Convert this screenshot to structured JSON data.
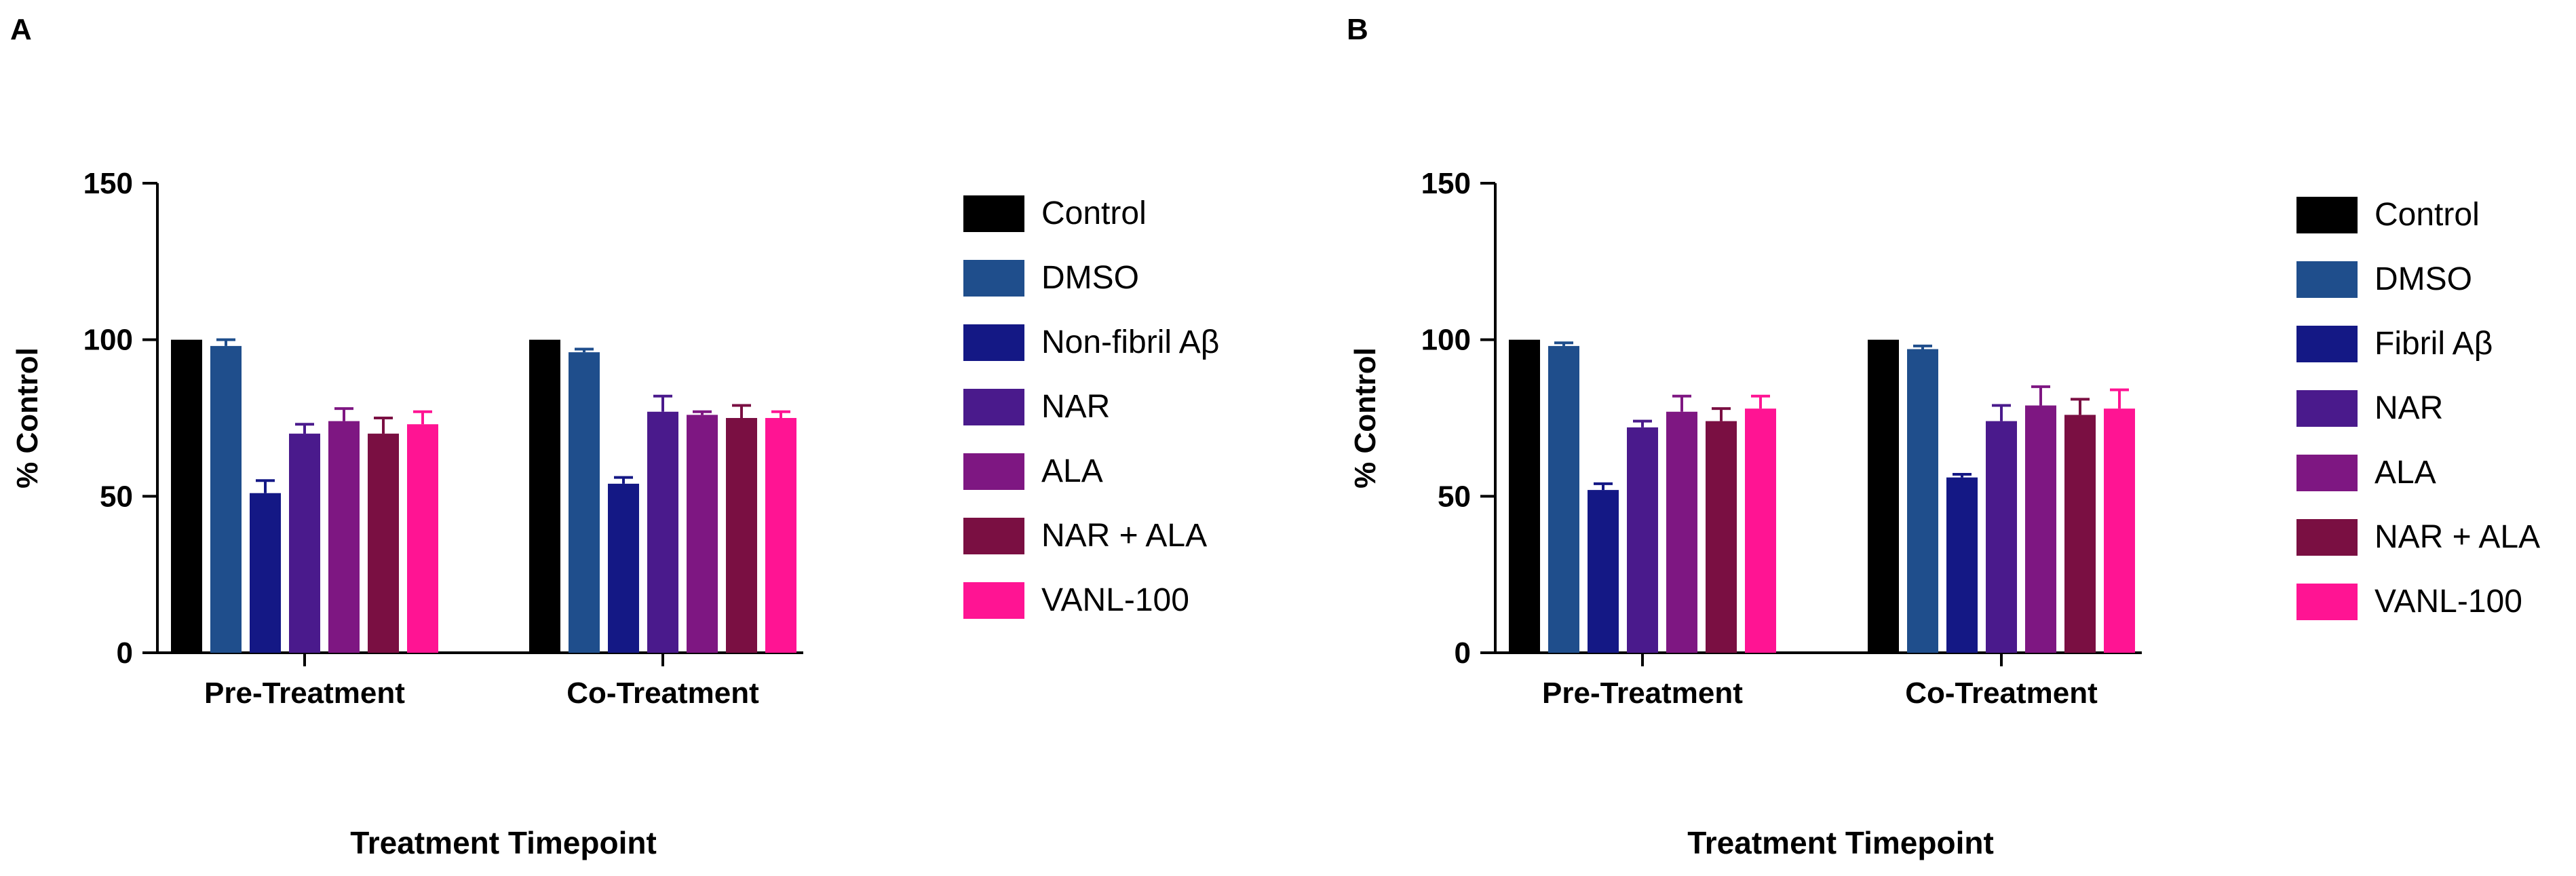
{
  "chart_data": [
    {
      "panel": "A",
      "type": "bar",
      "title": "",
      "ylabel": "% Control",
      "xlabel": "Treatment Timepoint",
      "ylim": [
        0,
        150
      ],
      "yticks": [
        0,
        50,
        100,
        150
      ],
      "categories": [
        "Pre-Treatment",
        "Co-Treatment"
      ],
      "series": [
        {
          "name": "Control",
          "color": "#000000",
          "values": [
            100,
            100
          ],
          "errors": [
            0,
            0
          ]
        },
        {
          "name": "DMSO",
          "color": "#1f4e8c",
          "values": [
            98,
            96
          ],
          "errors": [
            2,
            1
          ]
        },
        {
          "name": "Non-fibril Aβ",
          "color": "#141885",
          "values": [
            51,
            54
          ],
          "errors": [
            4,
            2
          ]
        },
        {
          "name": "NAR",
          "color": "#4a1a8c",
          "values": [
            70,
            77
          ],
          "errors": [
            3,
            5
          ]
        },
        {
          "name": "ALA",
          "color": "#7e1782",
          "values": [
            74,
            76
          ],
          "errors": [
            4,
            1
          ]
        },
        {
          "name": "NAR + ALA",
          "color": "#7a0f42",
          "values": [
            70,
            75
          ],
          "errors": [
            5,
            4
          ]
        },
        {
          "name": "VANL-100",
          "color": "#ff1493",
          "values": [
            73,
            75
          ],
          "errors": [
            4,
            2
          ]
        }
      ]
    },
    {
      "panel": "B",
      "type": "bar",
      "title": "",
      "ylabel": "% Control",
      "xlabel": "Treatment Timepoint",
      "ylim": [
        0,
        150
      ],
      "yticks": [
        0,
        50,
        100,
        150
      ],
      "categories": [
        "Pre-Treatment",
        "Co-Treatment"
      ],
      "series": [
        {
          "name": "Control",
          "color": "#000000",
          "values": [
            100,
            100
          ],
          "errors": [
            0,
            0
          ]
        },
        {
          "name": "DMSO",
          "color": "#1f4e8c",
          "values": [
            98,
            97
          ],
          "errors": [
            1,
            1
          ]
        },
        {
          "name": "Fibril Aβ",
          "color": "#141885",
          "values": [
            52,
            56
          ],
          "errors": [
            2,
            1
          ]
        },
        {
          "name": "NAR",
          "color": "#4a1a8c",
          "values": [
            72,
            74
          ],
          "errors": [
            2,
            5
          ]
        },
        {
          "name": "ALA",
          "color": "#7e1782",
          "values": [
            77,
            79
          ],
          "errors": [
            5,
            6
          ]
        },
        {
          "name": "NAR + ALA",
          "color": "#7a0f42",
          "values": [
            74,
            76
          ],
          "errors": [
            4,
            5
          ]
        },
        {
          "name": "VANL-100",
          "color": "#ff1493",
          "values": [
            78,
            78
          ],
          "errors": [
            4,
            6
          ]
        }
      ]
    }
  ]
}
